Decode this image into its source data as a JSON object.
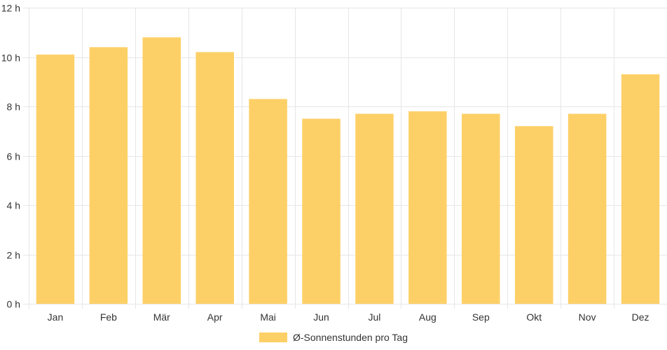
{
  "chart_data": {
    "type": "bar",
    "categories": [
      "Jan",
      "Feb",
      "Mär",
      "Apr",
      "Mai",
      "Jun",
      "Jul",
      "Aug",
      "Sep",
      "Okt",
      "Nov",
      "Dez"
    ],
    "series": [
      {
        "name": "Ø-Sonnenstunden pro Tag",
        "values": [
          10.1,
          10.4,
          10.8,
          10.2,
          8.3,
          7.5,
          7.7,
          7.8,
          7.7,
          7.2,
          7.7,
          9.3
        ],
        "color": "#fdd067"
      }
    ],
    "ylim": [
      0,
      12
    ],
    "y_ticks": [
      0,
      2,
      4,
      6,
      8,
      10,
      12
    ],
    "y_tick_suffix": " h",
    "grid": true,
    "grid_color": "#e6e6e6",
    "legend_position": "bottom"
  }
}
